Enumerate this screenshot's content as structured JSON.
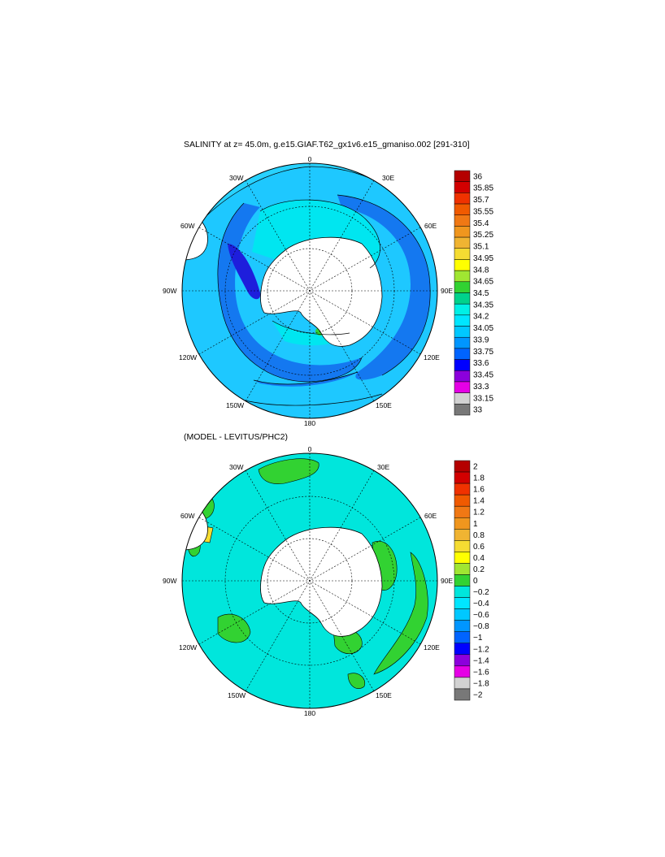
{
  "title_top": "SALINITY at z=  45.0m, g.e15.GIAF.T62_gx1v6.e15_gmaniso.002 [291-310]",
  "title_bottom": "(MODEL - LEVITUS/PHC2)",
  "longitude_labels": {
    "n": "0",
    "ne": "30E",
    "e60": "60E",
    "e": "90E",
    "se120": "120E",
    "se150": "150E",
    "s": "180",
    "sw150": "150W",
    "sw120": "120W",
    "w": "90W",
    "nw60": "60W",
    "nw30": "30W"
  },
  "colorbar_top": {
    "labels": [
      "36",
      "35.85",
      "35.7",
      "35.55",
      "35.4",
      "35.25",
      "35.1",
      "34.95",
      "34.8",
      "34.65",
      "34.5",
      "34.35",
      "34.2",
      "34.05",
      "33.9",
      "33.75",
      "33.6",
      "33.45",
      "33.3",
      "33.15",
      "33"
    ],
    "colors": [
      "#b40000",
      "#d20000",
      "#f03200",
      "#f05a00",
      "#f07814",
      "#f0961e",
      "#f0b432",
      "#f5dc32",
      "#ffff00",
      "#a0e632",
      "#32d232",
      "#00d28c",
      "#00f0e6",
      "#00e6ff",
      "#00c8ff",
      "#0096ff",
      "#0064ff",
      "#0000ff",
      "#8c00dc",
      "#e600e6",
      "#d2d2d2",
      "#787878"
    ]
  },
  "colorbar_bottom": {
    "labels": [
      "2",
      "1.8",
      "1.6",
      "1.4",
      "1.2",
      "1",
      "0.8",
      "0.6",
      "0.4",
      "0.2",
      "0",
      "−0.2",
      "−0.4",
      "−0.6",
      "−0.8",
      "−1",
      "−1.2",
      "−1.4",
      "−1.6",
      "−1.8",
      "−2"
    ],
    "colors": [
      "#b40000",
      "#d20000",
      "#f03200",
      "#f05a00",
      "#f07814",
      "#f0961e",
      "#f0b432",
      "#f5dc32",
      "#ffff00",
      "#a0e632",
      "#32d232",
      "#00e6dc",
      "#00e6ff",
      "#00c8ff",
      "#0096ff",
      "#0064ff",
      "#0000ff",
      "#8c00dc",
      "#e600e6",
      "#d2d2d2",
      "#787878"
    ]
  }
}
